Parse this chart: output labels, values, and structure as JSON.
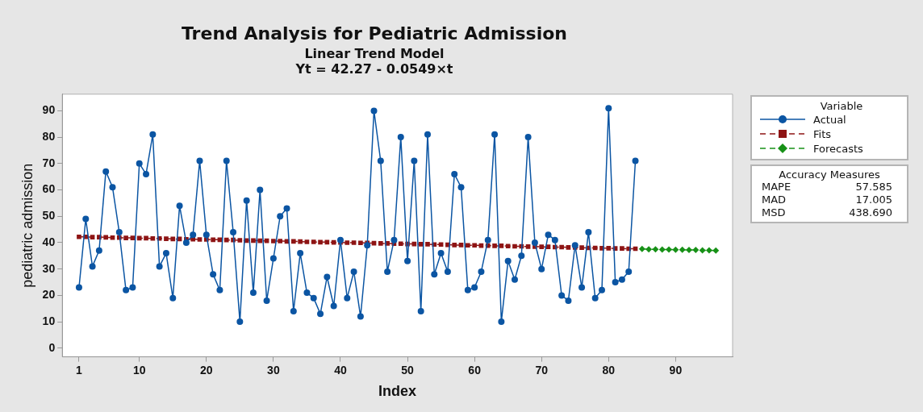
{
  "chart_data": {
    "type": "line",
    "title": "Trend Analysis for Pediatric Admission",
    "subtitle": "Linear Trend Model\nYt = 42.27 - 0.0549×t",
    "xlabel": "Index",
    "ylabel": "pediatric admission",
    "legend_title": "Variable",
    "legend": "right",
    "grid": false,
    "xlim": [
      -1.5,
      98.5
    ],
    "xticks": [
      1,
      10,
      20,
      30,
      40,
      50,
      60,
      70,
      80,
      90
    ],
    "ylim": [
      -3.3,
      96.3
    ],
    "yticks": [
      0,
      10,
      20,
      30,
      40,
      50,
      60,
      70,
      80,
      90
    ],
    "annotations": [
      "Accuracy Measures",
      "MAPE",
      "57.585",
      "MAD",
      "17.005",
      "MSD",
      "438.690"
    ],
    "series": [
      {
        "name": "Actual",
        "color": "#0b55a3",
        "marker": "circle",
        "line_style": "solid",
        "x": [
          1,
          2,
          3,
          4,
          5,
          6,
          7,
          8,
          9,
          10,
          11,
          12,
          13,
          14,
          15,
          16,
          17,
          18,
          19,
          20,
          21,
          22,
          23,
          24,
          25,
          26,
          27,
          28,
          29,
          30,
          31,
          32,
          33,
          34,
          35,
          36,
          37,
          38,
          39,
          40,
          41,
          42,
          43,
          44,
          45,
          46,
          47,
          48,
          49,
          50,
          51,
          52,
          53,
          54,
          55,
          56,
          57,
          58,
          59,
          60,
          61,
          62,
          63,
          64,
          65,
          66,
          67,
          68,
          69,
          70,
          71,
          72,
          73,
          74,
          75,
          76,
          77,
          78,
          79,
          80,
          81,
          82,
          83,
          84
        ],
        "values": [
          23,
          49,
          31,
          37,
          67,
          61,
          44,
          22,
          23,
          70,
          66,
          81,
          31,
          36,
          19,
          54,
          40,
          43,
          71,
          43,
          28,
          22,
          71,
          44,
          10,
          56,
          21,
          60,
          18,
          34,
          50,
          53,
          14,
          36,
          21,
          19,
          13,
          27,
          16,
          41,
          19,
          29,
          12,
          39,
          90,
          71,
          29,
          41,
          80,
          33,
          71,
          14,
          81,
          28,
          36,
          29,
          66,
          61,
          22,
          23,
          29,
          41,
          81,
          10,
          33,
          26,
          35,
          80,
          40,
          30,
          43,
          41,
          20,
          18,
          39,
          23,
          44,
          19,
          22,
          91,
          25,
          26,
          29,
          71
        ]
      },
      {
        "name": "Fits",
        "color": "#8e1414",
        "marker": "square",
        "line_style": "dashed",
        "x": [
          1,
          2,
          3,
          4,
          5,
          6,
          7,
          8,
          9,
          10,
          11,
          12,
          13,
          14,
          15,
          16,
          17,
          18,
          19,
          20,
          21,
          22,
          23,
          24,
          25,
          26,
          27,
          28,
          29,
          30,
          31,
          32,
          33,
          34,
          35,
          36,
          37,
          38,
          39,
          40,
          41,
          42,
          43,
          44,
          45,
          46,
          47,
          48,
          49,
          50,
          51,
          52,
          53,
          54,
          55,
          56,
          57,
          58,
          59,
          60,
          61,
          62,
          63,
          64,
          65,
          66,
          67,
          68,
          69,
          70,
          71,
          72,
          73,
          74,
          75,
          76,
          77,
          78,
          79,
          80,
          81,
          82,
          83,
          84
        ],
        "values": [
          42.2,
          42.2,
          42.1,
          42.1,
          42.0,
          41.9,
          41.9,
          41.8,
          41.8,
          41.7,
          41.7,
          41.6,
          41.6,
          41.5,
          41.4,
          41.4,
          41.3,
          41.3,
          41.2,
          41.2,
          41.1,
          41.1,
          41.0,
          41.0,
          40.9,
          40.8,
          40.8,
          40.7,
          40.7,
          40.6,
          40.6,
          40.5,
          40.5,
          40.4,
          40.3,
          40.3,
          40.2,
          40.2,
          40.1,
          40.1,
          40.0,
          40.0,
          39.9,
          39.9,
          39.8,
          39.7,
          39.7,
          39.6,
          39.6,
          39.5,
          39.5,
          39.4,
          39.4,
          39.3,
          39.3,
          39.2,
          39.1,
          39.1,
          39.0,
          39.0,
          38.9,
          38.9,
          38.8,
          38.8,
          38.7,
          38.6,
          38.6,
          38.5,
          38.5,
          38.4,
          38.4,
          38.3,
          38.3,
          38.2,
          38.2,
          38.1,
          38.0,
          38.0,
          37.9,
          37.9,
          37.8,
          37.8,
          37.7,
          37.7
        ]
      },
      {
        "name": "Forecasts",
        "color": "#179117",
        "marker": "diamond",
        "line_style": "dashed",
        "x": [
          85,
          86,
          87,
          88,
          89,
          90,
          91,
          92,
          93,
          94,
          95,
          96
        ],
        "values": [
          37.6,
          37.5,
          37.5,
          37.4,
          37.4,
          37.3,
          37.3,
          37.2,
          37.2,
          37.1,
          37.1,
          37.0
        ]
      }
    ]
  }
}
